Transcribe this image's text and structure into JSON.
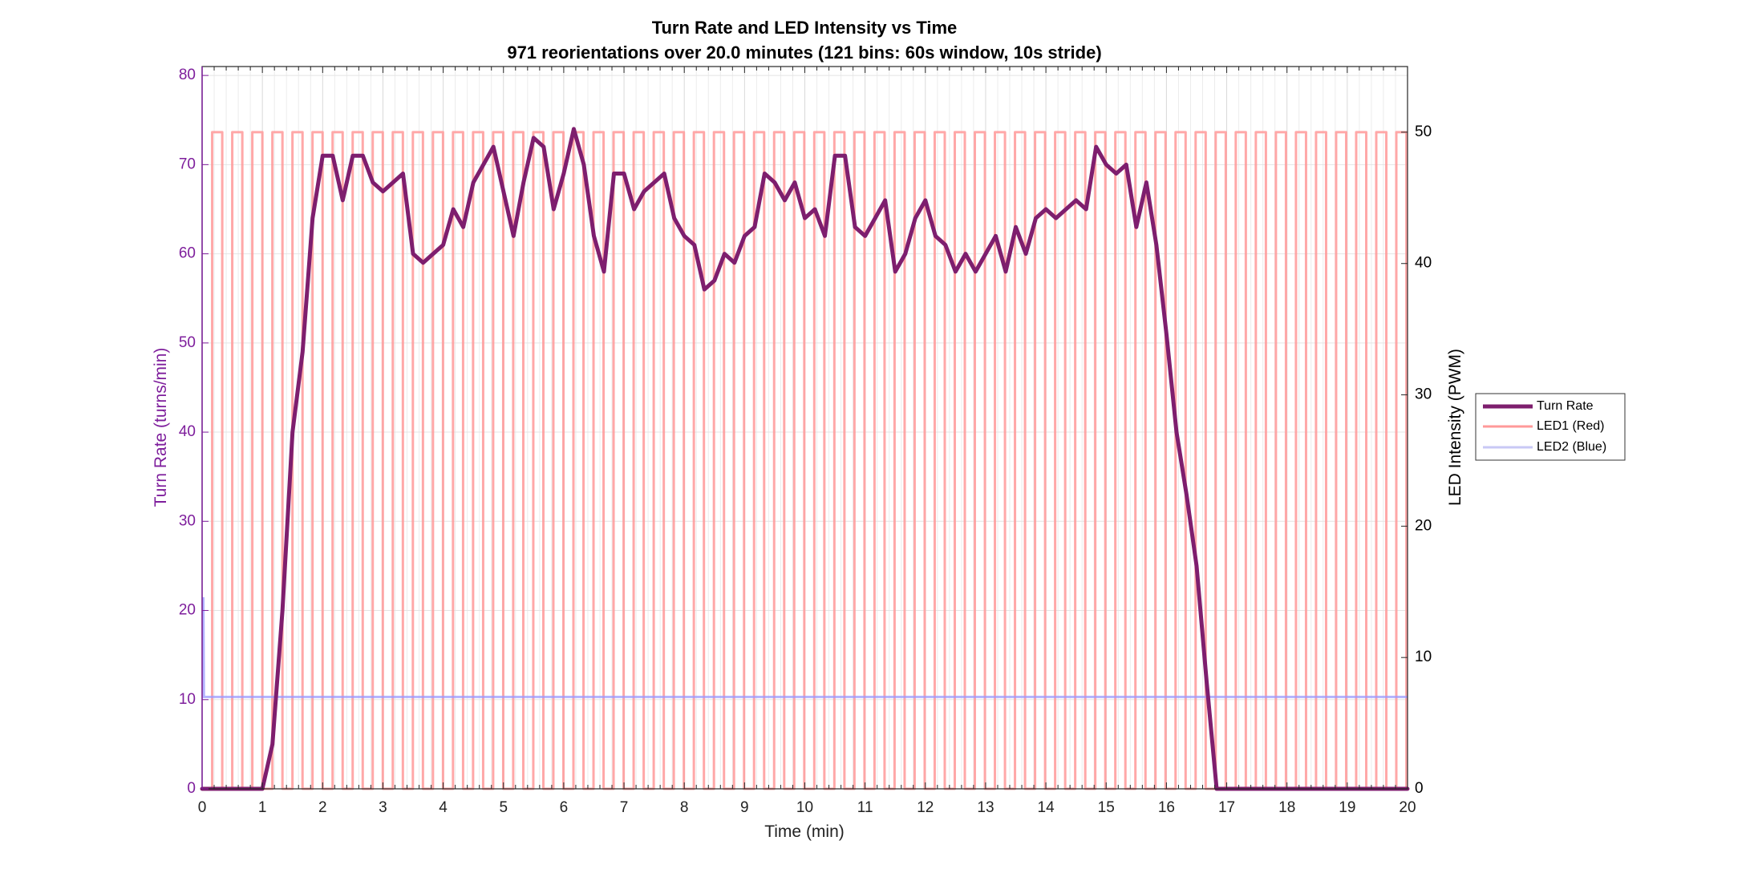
{
  "chart_data": {
    "type": "line",
    "title": "Turn Rate and LED Intensity vs Time",
    "subtitle": "971 reorientations over 20.0 minutes (121 bins: 60s window, 10s stride)",
    "xlabel": "Time (min)",
    "ylabel_left": "Turn Rate (turns/min)",
    "ylabel_right": "LED Intensity (PWM)",
    "xlim": [
      0,
      20
    ],
    "ylim_left": [
      0,
      81
    ],
    "ylim_right": [
      0,
      55
    ],
    "x_ticks": [
      "0",
      "1",
      "2",
      "3",
      "4",
      "5",
      "6",
      "7",
      "8",
      "9",
      "10",
      "11",
      "12",
      "13",
      "14",
      "15",
      "16",
      "17",
      "18",
      "19",
      "20"
    ],
    "y_left_ticks": [
      "0",
      "10",
      "20",
      "30",
      "40",
      "50",
      "60",
      "70",
      "80"
    ],
    "y_right_ticks": [
      "0",
      "10",
      "20",
      "30",
      "40",
      "50"
    ],
    "grid": true,
    "legend_position": "outside-right",
    "series": [
      {
        "name": "Turn Rate",
        "axis": "left",
        "color": "#7e1e6e",
        "x": [
          0,
          0.167,
          0.333,
          0.5,
          0.667,
          0.833,
          1,
          1.167,
          1.333,
          1.5,
          1.667,
          1.833,
          2,
          2.167,
          2.333,
          2.5,
          2.667,
          2.833,
          3,
          3.167,
          3.333,
          3.5,
          3.667,
          3.833,
          4,
          4.167,
          4.333,
          4.5,
          4.667,
          4.833,
          5,
          5.167,
          5.333,
          5.5,
          5.667,
          5.833,
          6,
          6.167,
          6.333,
          6.5,
          6.667,
          6.833,
          7,
          7.167,
          7.333,
          7.5,
          7.667,
          7.833,
          8,
          8.167,
          8.333,
          8.5,
          8.667,
          8.833,
          9,
          9.167,
          9.333,
          9.5,
          9.667,
          9.833,
          10,
          10.167,
          10.333,
          10.5,
          10.667,
          10.833,
          11,
          11.167,
          11.333,
          11.5,
          11.667,
          11.833,
          12,
          12.167,
          12.333,
          12.5,
          12.667,
          12.833,
          13,
          13.167,
          13.333,
          13.5,
          13.667,
          13.833,
          14,
          14.167,
          14.333,
          14.5,
          14.667,
          14.833,
          15,
          15.167,
          15.333,
          15.5,
          15.667,
          15.833,
          16,
          16.167,
          16.333,
          16.5,
          16.667,
          16.833,
          17,
          17.167,
          17.333,
          17.5,
          17.667,
          17.833,
          18,
          18.167,
          18.333,
          18.5,
          18.667,
          18.833,
          19,
          19.167,
          19.333,
          19.5,
          19.667,
          19.833,
          20
        ],
        "values": [
          0,
          0,
          0,
          0,
          0,
          0,
          0,
          5,
          20,
          40,
          49,
          64,
          71,
          71,
          66,
          71,
          71,
          68,
          67,
          68,
          69,
          60,
          59,
          60,
          61,
          65,
          63,
          68,
          70,
          72,
          67,
          62,
          68,
          73,
          72,
          65,
          69,
          74,
          70,
          62,
          58,
          69,
          69,
          65,
          67,
          68,
          69,
          64,
          62,
          61,
          56,
          57,
          60,
          59,
          62,
          63,
          69,
          68,
          66,
          68,
          64,
          65,
          62,
          71,
          71,
          63,
          62,
          64,
          66,
          58,
          60,
          64,
          66,
          62,
          61,
          58,
          60,
          58,
          60,
          62,
          58,
          63,
          60,
          64,
          65,
          64,
          65,
          66,
          65,
          72,
          70,
          69,
          70,
          63,
          68,
          61,
          51,
          40,
          33,
          25,
          12,
          0,
          0,
          0,
          0,
          0,
          0,
          0,
          0,
          0,
          0,
          0,
          0,
          0,
          0,
          0,
          0,
          0,
          0,
          0,
          0
        ]
      },
      {
        "name": "LED1 (Red)",
        "axis": "right",
        "color": "#ff9999",
        "waveform": "square",
        "period_min": 0.333,
        "on_duration_min": 0.167,
        "first_on_min": 0.167,
        "on_value": 50,
        "off_value": 0,
        "x_start": 0,
        "x_end": 20
      },
      {
        "name": "LED2 (Blue)",
        "axis": "right",
        "color": "#9999ff",
        "x": [
          0,
          0.02,
          0.03,
          20
        ],
        "values": [
          14.5,
          14.5,
          7,
          7
        ]
      }
    ]
  }
}
